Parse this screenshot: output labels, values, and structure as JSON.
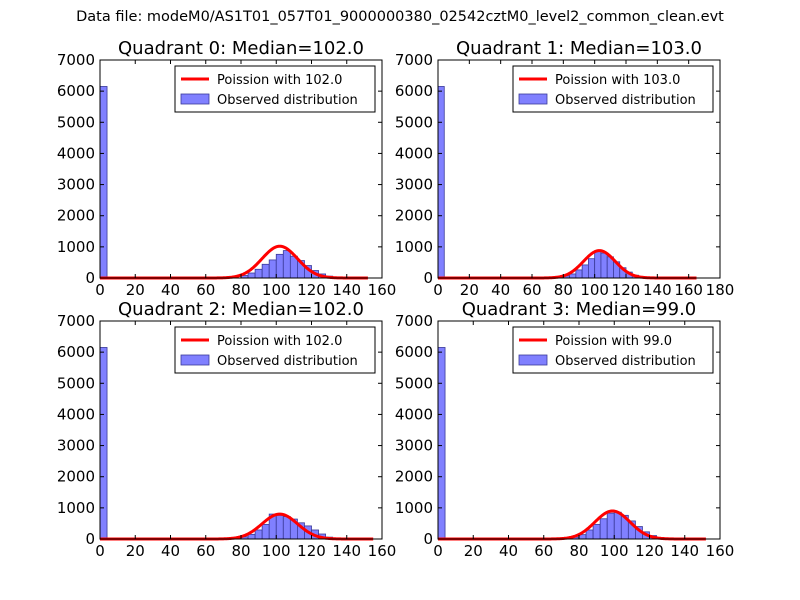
{
  "figure": {
    "title": "Data file: modeM0/AS1T01_057T01_9000000380_02542cztM0_level2_common_clean.evt"
  },
  "colors": {
    "poisson": "#ff0000",
    "hist_fill": "#8080ff",
    "hist_edge": "#3a3a99",
    "axes": "#000000"
  },
  "chart_data": [
    {
      "type": "bar",
      "title": "Quadrant 0: Median=102.0",
      "xlim": [
        0,
        160
      ],
      "ylim": [
        0,
        7000
      ],
      "xticks": [
        0,
        20,
        40,
        60,
        80,
        100,
        120,
        140,
        160
      ],
      "yticks": [
        0,
        1000,
        2000,
        3000,
        4000,
        5000,
        6000,
        7000
      ],
      "legend_position": "upper-right",
      "legend": [
        "Poission with 102.0",
        "Observed distribution"
      ],
      "poisson": {
        "name": "Poission with 102.0",
        "mean": 102.0,
        "peak": 1020,
        "x_range": [
          0,
          152
        ]
      },
      "histogram": {
        "name": "Observed distribution",
        "bin_width": 4,
        "bins": [
          [
            0,
            6150
          ],
          [
            80,
            80
          ],
          [
            84,
            160
          ],
          [
            88,
            280
          ],
          [
            92,
            440
          ],
          [
            96,
            580
          ],
          [
            100,
            760
          ],
          [
            104,
            880
          ],
          [
            108,
            700
          ],
          [
            112,
            560
          ],
          [
            116,
            400
          ],
          [
            120,
            240
          ],
          [
            124,
            130
          ],
          [
            128,
            60
          ]
        ]
      }
    },
    {
      "type": "bar",
      "title": "Quadrant 1: Median=103.0",
      "xlim": [
        0,
        180
      ],
      "ylim": [
        0,
        7000
      ],
      "xticks": [
        0,
        20,
        40,
        60,
        80,
        100,
        120,
        140,
        160,
        180
      ],
      "yticks": [
        0,
        1000,
        2000,
        3000,
        4000,
        5000,
        6000,
        7000
      ],
      "legend_position": "upper-right",
      "legend": [
        "Poission with 103.0",
        "Observed distribution"
      ],
      "poisson": {
        "name": "Poission with 103.0",
        "mean": 103.0,
        "peak": 880,
        "x_range": [
          0,
          165
        ]
      },
      "histogram": {
        "name": "Observed distribution",
        "bin_width": 4,
        "bins": [
          [
            0,
            6150
          ],
          [
            80,
            70
          ],
          [
            84,
            130
          ],
          [
            88,
            260
          ],
          [
            92,
            420
          ],
          [
            96,
            620
          ],
          [
            100,
            850
          ],
          [
            104,
            800
          ],
          [
            108,
            680
          ],
          [
            112,
            520
          ],
          [
            116,
            330
          ],
          [
            120,
            190
          ],
          [
            124,
            90
          ]
        ]
      }
    },
    {
      "type": "bar",
      "title": "Quadrant 2: Median=102.0",
      "xlim": [
        0,
        160
      ],
      "ylim": [
        0,
        7000
      ],
      "xticks": [
        0,
        20,
        40,
        60,
        80,
        100,
        120,
        140,
        160
      ],
      "yticks": [
        0,
        1000,
        2000,
        3000,
        4000,
        5000,
        6000,
        7000
      ],
      "legend_position": "upper-right",
      "legend": [
        "Poission with 102.0",
        "Observed distribution"
      ],
      "poisson": {
        "name": "Poission with 102.0",
        "mean": 102.0,
        "peak": 800,
        "x_range": [
          0,
          155
        ]
      },
      "histogram": {
        "name": "Observed distribution",
        "bin_width": 4,
        "bins": [
          [
            0,
            6150
          ],
          [
            80,
            70
          ],
          [
            84,
            150
          ],
          [
            88,
            290
          ],
          [
            92,
            470
          ],
          [
            96,
            800
          ],
          [
            100,
            760
          ],
          [
            104,
            720
          ],
          [
            108,
            640
          ],
          [
            112,
            520
          ],
          [
            116,
            420
          ],
          [
            120,
            290
          ],
          [
            124,
            160
          ],
          [
            128,
            60
          ]
        ]
      }
    },
    {
      "type": "bar",
      "title": "Quadrant 3: Median=99.0",
      "xlim": [
        0,
        160
      ],
      "ylim": [
        0,
        7000
      ],
      "xticks": [
        0,
        20,
        40,
        60,
        80,
        100,
        120,
        140,
        160
      ],
      "yticks": [
        0,
        1000,
        2000,
        3000,
        4000,
        5000,
        6000,
        7000
      ],
      "legend_position": "upper-right",
      "legend": [
        "Poission with 99.0",
        "Observed distribution"
      ],
      "poisson": {
        "name": "Poission with 99.0",
        "mean": 99.0,
        "peak": 900,
        "x_range": [
          0,
          152
        ]
      },
      "histogram": {
        "name": "Observed distribution",
        "bin_width": 4,
        "bins": [
          [
            0,
            6150
          ],
          [
            76,
            60
          ],
          [
            80,
            140
          ],
          [
            84,
            290
          ],
          [
            88,
            470
          ],
          [
            92,
            650
          ],
          [
            96,
            830
          ],
          [
            100,
            860
          ],
          [
            104,
            760
          ],
          [
            108,
            580
          ],
          [
            112,
            400
          ],
          [
            116,
            230
          ],
          [
            120,
            110
          ],
          [
            124,
            50
          ]
        ]
      }
    }
  ]
}
